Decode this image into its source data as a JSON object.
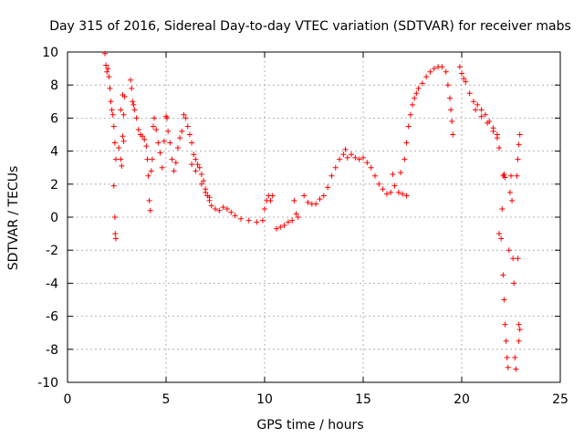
{
  "chart_data": {
    "type": "scatter",
    "title": "Day 315 of 2016, Sidereal Day-to-day VTEC variation (SDTVAR) for receiver mabs",
    "xlabel": "GPS time / hours",
    "ylabel": "SDTVAR / TECUs",
    "xlim": [
      0,
      25
    ],
    "ylim": [
      -10,
      10
    ],
    "xticks": [
      0,
      5,
      10,
      15,
      20,
      25
    ],
    "yticks": [
      -10,
      -8,
      -6,
      -4,
      -2,
      0,
      2,
      4,
      6,
      8,
      10
    ],
    "xtick_labels": [
      "0",
      "5",
      "10",
      "15",
      "20",
      "25"
    ],
    "ytick_labels": [
      "-10",
      "-8",
      "-6",
      "-4",
      "-2",
      "0",
      "2",
      "4",
      "6",
      "8",
      "10"
    ],
    "grid": true,
    "marker": "+",
    "color": "#ff0000",
    "series": [
      {
        "name": "SDTVAR",
        "points": [
          [
            1.9,
            9.9
          ],
          [
            1.95,
            9.2
          ],
          [
            2.0,
            8.8
          ],
          [
            2.05,
            9.0
          ],
          [
            2.1,
            8.5
          ],
          [
            2.15,
            7.8
          ],
          [
            2.2,
            7.0
          ],
          [
            2.25,
            6.5
          ],
          [
            2.3,
            6.2
          ],
          [
            2.35,
            5.5
          ],
          [
            2.4,
            4.5
          ],
          [
            2.45,
            3.5
          ],
          [
            2.35,
            1.9
          ],
          [
            2.4,
            0.0
          ],
          [
            2.42,
            -1.0
          ],
          [
            2.45,
            -1.3
          ],
          [
            2.6,
            4.2
          ],
          [
            2.7,
            3.5
          ],
          [
            2.75,
            3.1
          ],
          [
            2.8,
            4.9
          ],
          [
            2.85,
            4.6
          ],
          [
            2.7,
            6.5
          ],
          [
            2.8,
            7.4
          ],
          [
            2.9,
            7.3
          ],
          [
            2.85,
            6.2
          ],
          [
            3.2,
            8.3
          ],
          [
            3.25,
            7.8
          ],
          [
            3.3,
            7.0
          ],
          [
            3.35,
            6.8
          ],
          [
            3.4,
            6.5
          ],
          [
            3.5,
            6.0
          ],
          [
            3.6,
            5.3
          ],
          [
            3.7,
            5.0
          ],
          [
            3.8,
            4.9
          ],
          [
            3.9,
            4.7
          ],
          [
            4.0,
            4.3
          ],
          [
            4.05,
            3.5
          ],
          [
            4.1,
            2.5
          ],
          [
            4.15,
            1.0
          ],
          [
            4.2,
            0.4
          ],
          [
            4.25,
            2.8
          ],
          [
            4.3,
            3.5
          ],
          [
            4.35,
            5.5
          ],
          [
            4.4,
            6.0
          ],
          [
            4.5,
            5.3
          ],
          [
            4.6,
            4.5
          ],
          [
            4.7,
            3.9
          ],
          [
            4.8,
            3.0
          ],
          [
            4.9,
            4.6
          ],
          [
            5.0,
            6.1
          ],
          [
            5.05,
            6.0
          ],
          [
            5.1,
            5.2
          ],
          [
            5.2,
            4.5
          ],
          [
            5.3,
            3.5
          ],
          [
            5.4,
            2.8
          ],
          [
            5.5,
            3.3
          ],
          [
            5.6,
            4.2
          ],
          [
            5.7,
            4.8
          ],
          [
            5.8,
            5.2
          ],
          [
            5.9,
            6.2
          ],
          [
            6.0,
            6.0
          ],
          [
            6.1,
            5.5
          ],
          [
            6.2,
            5.0
          ],
          [
            6.3,
            4.5
          ],
          [
            6.4,
            3.8
          ],
          [
            6.5,
            3.5
          ],
          [
            6.6,
            3.2
          ],
          [
            6.7,
            3.0
          ],
          [
            6.8,
            2.6
          ],
          [
            6.9,
            2.2
          ],
          [
            7.0,
            1.7
          ],
          [
            7.1,
            1.3
          ],
          [
            7.2,
            1.0
          ],
          [
            7.3,
            0.7
          ],
          [
            7.5,
            0.5
          ],
          [
            7.7,
            0.4
          ],
          [
            7.9,
            0.6
          ],
          [
            8.1,
            0.5
          ],
          [
            8.3,
            0.3
          ],
          [
            8.5,
            0.1
          ],
          [
            8.8,
            -0.1
          ],
          [
            9.2,
            -0.2
          ],
          [
            9.6,
            -0.3
          ],
          [
            9.9,
            -0.2
          ],
          [
            6.3,
            3.2
          ],
          [
            6.5,
            2.8
          ],
          [
            6.8,
            2.0
          ],
          [
            7.0,
            1.5
          ],
          [
            7.2,
            1.2
          ],
          [
            10.0,
            0.5
          ],
          [
            10.1,
            1.0
          ],
          [
            10.2,
            1.3
          ],
          [
            10.3,
            1.0
          ],
          [
            10.4,
            1.3
          ],
          [
            10.6,
            -0.7
          ],
          [
            10.8,
            -0.6
          ],
          [
            11.0,
            -0.5
          ],
          [
            11.2,
            -0.3
          ],
          [
            11.4,
            -0.2
          ],
          [
            11.5,
            1.0
          ],
          [
            11.6,
            0.2
          ],
          [
            11.7,
            0.0
          ],
          [
            12.0,
            1.3
          ],
          [
            12.2,
            0.9
          ],
          [
            12.4,
            0.8
          ],
          [
            12.6,
            0.8
          ],
          [
            12.8,
            1.1
          ],
          [
            13.0,
            1.3
          ],
          [
            13.2,
            1.8
          ],
          [
            13.4,
            2.5
          ],
          [
            13.6,
            3.0
          ],
          [
            13.8,
            3.5
          ],
          [
            14.0,
            3.8
          ],
          [
            14.1,
            4.1
          ],
          [
            14.2,
            3.6
          ],
          [
            14.4,
            3.8
          ],
          [
            14.6,
            3.6
          ],
          [
            14.8,
            3.5
          ],
          [
            15.0,
            3.6
          ],
          [
            15.2,
            3.3
          ],
          [
            15.4,
            3.0
          ],
          [
            15.6,
            2.5
          ],
          [
            15.8,
            2.0
          ],
          [
            16.0,
            1.7
          ],
          [
            16.2,
            1.4
          ],
          [
            16.4,
            1.5
          ],
          [
            16.6,
            1.9
          ],
          [
            16.8,
            1.5
          ],
          [
            17.0,
            1.4
          ],
          [
            17.2,
            1.3
          ],
          [
            16.5,
            2.6
          ],
          [
            16.9,
            2.7
          ],
          [
            17.1,
            3.5
          ],
          [
            17.2,
            4.5
          ],
          [
            17.3,
            5.5
          ],
          [
            17.4,
            6.2
          ],
          [
            17.5,
            6.8
          ],
          [
            17.6,
            7.2
          ],
          [
            17.7,
            7.5
          ],
          [
            17.8,
            7.8
          ],
          [
            18.0,
            8.1
          ],
          [
            18.2,
            8.5
          ],
          [
            18.4,
            8.8
          ],
          [
            18.6,
            9.0
          ],
          [
            18.8,
            9.1
          ],
          [
            19.0,
            9.1
          ],
          [
            19.2,
            8.8
          ],
          [
            19.3,
            8.0
          ],
          [
            19.4,
            7.2
          ],
          [
            19.45,
            6.5
          ],
          [
            19.5,
            5.8
          ],
          [
            19.55,
            5.0
          ],
          [
            19.9,
            9.1
          ],
          [
            20.0,
            8.7
          ],
          [
            20.1,
            8.4
          ],
          [
            20.2,
            8.2
          ],
          [
            20.4,
            7.5
          ],
          [
            20.6,
            7.0
          ],
          [
            20.8,
            6.8
          ],
          [
            21.0,
            6.5
          ],
          [
            21.2,
            6.2
          ],
          [
            21.4,
            5.8
          ],
          [
            21.6,
            5.4
          ],
          [
            21.8,
            5.0
          ],
          [
            21.9,
            4.2
          ],
          [
            20.7,
            6.5
          ],
          [
            21.0,
            6.1
          ],
          [
            21.3,
            5.7
          ],
          [
            21.6,
            5.2
          ],
          [
            21.8,
            4.8
          ],
          [
            21.9,
            -1.0
          ],
          [
            22.0,
            -1.3
          ],
          [
            22.05,
            0.5
          ],
          [
            22.1,
            2.5
          ],
          [
            22.15,
            2.6
          ],
          [
            22.2,
            2.4
          ],
          [
            22.1,
            -3.5
          ],
          [
            22.15,
            -5.0
          ],
          [
            22.2,
            -6.5
          ],
          [
            22.25,
            -7.5
          ],
          [
            22.3,
            -8.5
          ],
          [
            22.35,
            -9.1
          ],
          [
            22.4,
            -2.0
          ],
          [
            22.45,
            1.5
          ],
          [
            22.5,
            2.5
          ],
          [
            22.55,
            1.0
          ],
          [
            22.6,
            -2.5
          ],
          [
            22.65,
            -4.0
          ],
          [
            22.7,
            -8.5
          ],
          [
            22.75,
            -9.2
          ],
          [
            22.8,
            2.5
          ],
          [
            22.85,
            3.5
          ],
          [
            22.9,
            4.4
          ],
          [
            22.95,
            5.0
          ],
          [
            22.85,
            -2.5
          ],
          [
            22.9,
            -6.5
          ],
          [
            22.95,
            -6.8
          ],
          [
            22.9,
            -7.5
          ]
        ]
      }
    ]
  }
}
